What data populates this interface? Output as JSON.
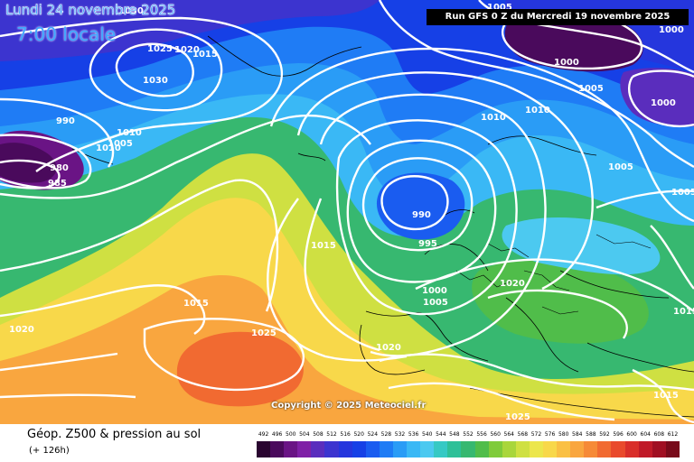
{
  "header": {
    "date": "Lundi 24 novembre 2025",
    "time": "7:00 locale",
    "run": "Run GFS 0 Z du Mercredi 19 novembre 2025"
  },
  "copyright": "Copyright © 2025 Meteociel.fr",
  "footer": {
    "parameter": "Géop. Z500 & pression au sol",
    "lead_time": "(+ 126h)"
  },
  "legend": {
    "unit_levels": [
      "492",
      "496",
      "500",
      "504",
      "508",
      "512",
      "516",
      "520",
      "524",
      "528",
      "532",
      "536",
      "540",
      "544",
      "548",
      "552",
      "556",
      "560",
      "564",
      "568",
      "572",
      "576",
      "580",
      "584",
      "588",
      "592",
      "596",
      "600",
      "604",
      "608",
      "612"
    ],
    "colors": [
      "#2a0530",
      "#4a0a5c",
      "#6a1485",
      "#7f20a6",
      "#5a2dbd",
      "#3c34cf",
      "#2536dd",
      "#1640e6",
      "#1a5cf0",
      "#1f7cf5",
      "#2a9cf6",
      "#3ab8f5",
      "#4cc9f0",
      "#36c9c4",
      "#2ec098",
      "#37b870",
      "#50bd4a",
      "#7fcb3a",
      "#a9d63b",
      "#cfe042",
      "#ece64c",
      "#f8d84a",
      "#fac044",
      "#f9a63f",
      "#f68a37",
      "#f16a31",
      "#e94a2c",
      "#d92e2a",
      "#c01a28",
      "#a00f22",
      "#780a1a"
    ]
  },
  "isobars": [
    {
      "value": "1030",
      "note": "label"
    },
    {
      "value": "1025"
    },
    {
      "value": "1020"
    },
    {
      "value": "1015"
    },
    {
      "value": "1030"
    },
    {
      "value": "990"
    },
    {
      "value": "1010"
    },
    {
      "value": "1005"
    },
    {
      "value": "1010"
    },
    {
      "value": "980"
    },
    {
      "value": "985"
    },
    {
      "value": "1005"
    },
    {
      "value": "1000"
    },
    {
      "value": "1000"
    },
    {
      "value": "1005"
    },
    {
      "value": "1000"
    },
    {
      "value": "1010"
    },
    {
      "value": "1010"
    },
    {
      "value": "1005"
    },
    {
      "value": "1005"
    },
    {
      "value": "990"
    },
    {
      "value": "995"
    },
    {
      "value": "1015"
    },
    {
      "value": "1000"
    },
    {
      "value": "1005"
    },
    {
      "value": "1020"
    },
    {
      "value": "1015"
    },
    {
      "value": "1020"
    },
    {
      "value": "1025"
    },
    {
      "value": "1020"
    },
    {
      "value": "1015"
    },
    {
      "value": "1015"
    },
    {
      "value": "1025"
    }
  ]
}
